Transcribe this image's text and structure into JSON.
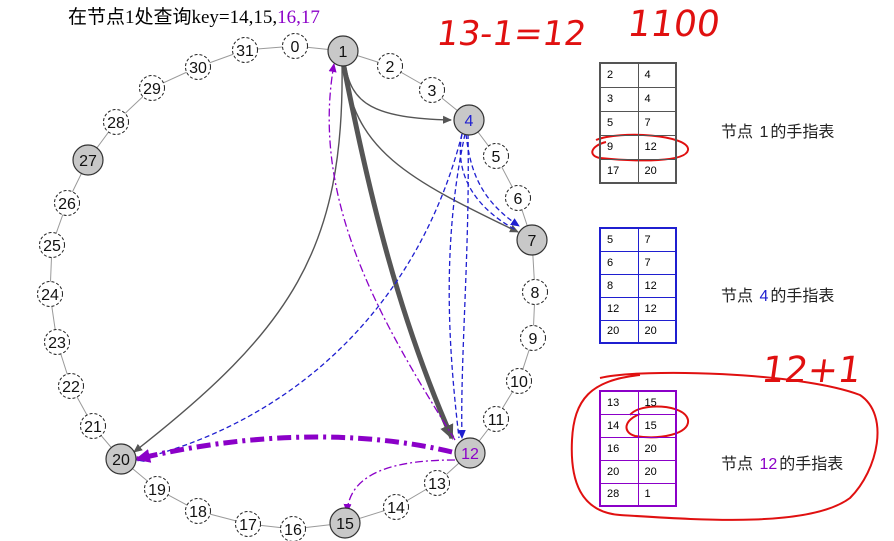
{
  "title": {
    "prefix": "在节点1处查询key=14,15,",
    "purple_part": "16,17"
  },
  "ring": {
    "big_nodes": [
      "1",
      "4",
      "7",
      "12",
      "15",
      "20",
      "27"
    ],
    "small_nodes": [
      "0",
      "2",
      "3",
      "5",
      "6",
      "8",
      "9",
      "10",
      "11",
      "13",
      "14",
      "16",
      "17",
      "18",
      "19",
      "21",
      "22",
      "23",
      "24",
      "25",
      "26",
      "28",
      "29",
      "30",
      "31"
    ]
  },
  "tables": {
    "node1": {
      "rows": [
        [
          "2",
          "4"
        ],
        [
          "3",
          "4"
        ],
        [
          "5",
          "7"
        ],
        [
          "9",
          "12"
        ],
        [
          "17",
          "20"
        ]
      ],
      "caption_prefix": "节点 ",
      "caption_num": "1",
      "caption_suffix": "的手指表"
    },
    "node4": {
      "rows": [
        [
          "5",
          "7"
        ],
        [
          "6",
          "7"
        ],
        [
          "8",
          "12"
        ],
        [
          "12",
          "12"
        ],
        [
          "20",
          "20"
        ]
      ],
      "caption_prefix": "节点 ",
      "caption_num": "4",
      "caption_suffix": "的手指表"
    },
    "node12": {
      "rows": [
        [
          "13",
          "15"
        ],
        [
          "14",
          "15"
        ],
        [
          "16",
          "20"
        ],
        [
          "20",
          "20"
        ],
        [
          "28",
          "1"
        ]
      ],
      "caption_prefix": "节点 ",
      "caption_num": "12",
      "caption_suffix": "的手指表"
    }
  },
  "handwriting": {
    "eq": "13-1=12",
    "bin": "1100",
    "plus": "12+1"
  },
  "colors": {
    "gray": "#555555",
    "blue": "#1f1fd0",
    "purple": "#8b00c8",
    "red": "#e01010",
    "node_fill": "#c8c8c8"
  }
}
